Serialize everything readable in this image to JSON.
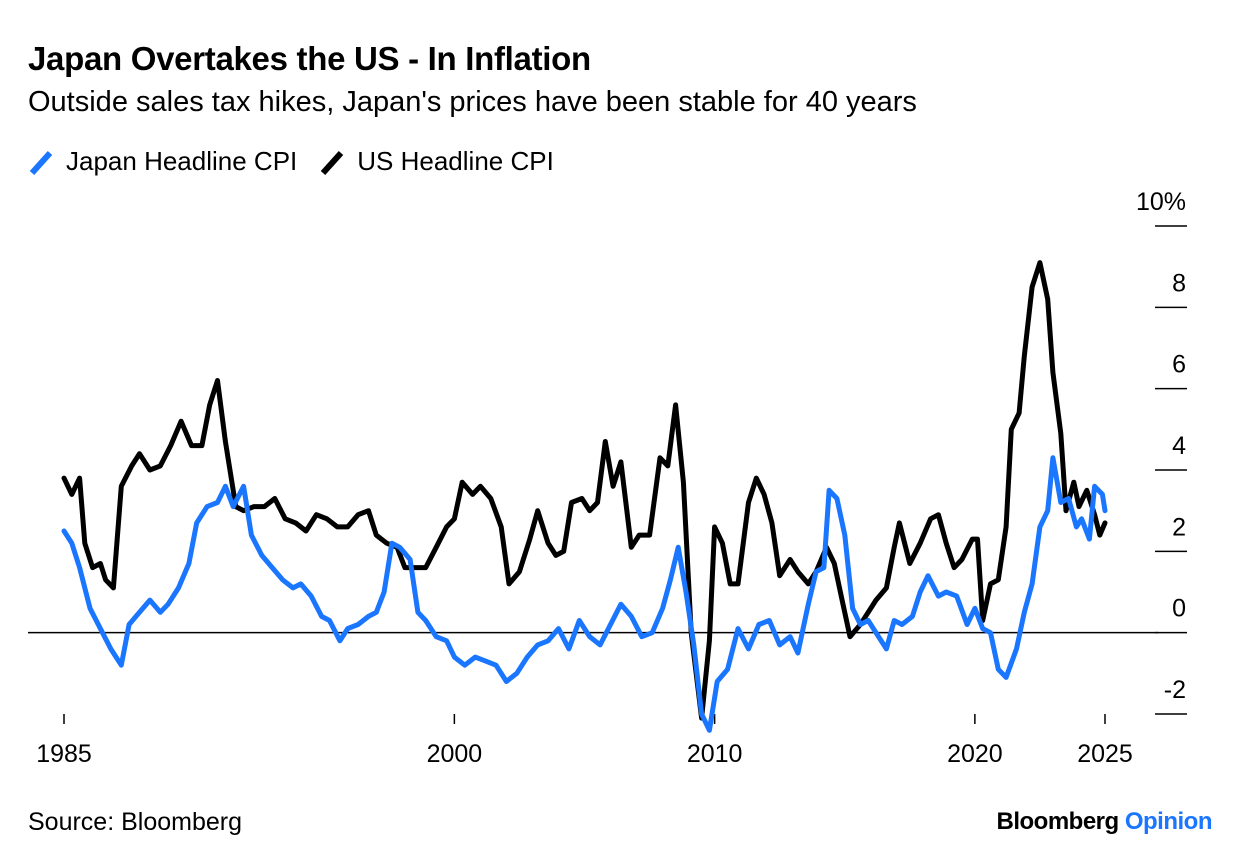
{
  "title": "Japan Overtakes the US - In Inflation",
  "subtitle": "Outside sales tax hikes, Japan's prices have been stable for 40 years",
  "legend": [
    {
      "label": "Japan Headline CPI",
      "color": "#1a76ff"
    },
    {
      "label": "US Headline CPI",
      "color": "#000000"
    }
  ],
  "source": "Source: Bloomberg",
  "brand": {
    "name": "Bloomberg",
    "product": "Opinion"
  },
  "chart_data": {
    "type": "line",
    "title": "Japan Overtakes the US - In Inflation",
    "subtitle": "Outside sales tax hikes, Japan's prices have been stable for 40 years",
    "xlabel": "",
    "ylabel": "",
    "xlim": [
      1985,
      2025
    ],
    "ylim": [
      -2,
      10
    ],
    "x_ticks": [
      {
        "value": 1985,
        "label": "1985"
      },
      {
        "value": 2000,
        "label": "2000"
      },
      {
        "value": 2010,
        "label": "2010"
      },
      {
        "value": 2020,
        "label": "2020"
      },
      {
        "value": 2025,
        "label": "2025"
      }
    ],
    "y_ticks": [
      {
        "value": 10,
        "label": "10%"
      },
      {
        "value": 8,
        "label": "8"
      },
      {
        "value": 6,
        "label": "6"
      },
      {
        "value": 4,
        "label": "4"
      },
      {
        "value": 2,
        "label": "2"
      },
      {
        "value": 0,
        "label": "0"
      },
      {
        "value": -2,
        "label": "-2"
      }
    ],
    "zero_line": true,
    "grid": false,
    "legend_position": "top-left",
    "series": [
      {
        "name": "Japan Headline CPI",
        "color": "#1a76ff",
        "points": [
          [
            1985.0,
            2.5
          ],
          [
            1985.3,
            2.2
          ],
          [
            1985.6,
            1.6
          ],
          [
            1986.0,
            0.6
          ],
          [
            1986.4,
            0.1
          ],
          [
            1986.8,
            -0.4
          ],
          [
            1987.0,
            -0.6
          ],
          [
            1987.2,
            -0.8
          ],
          [
            1987.5,
            0.2
          ],
          [
            1987.9,
            0.5
          ],
          [
            1988.3,
            0.8
          ],
          [
            1988.7,
            0.5
          ],
          [
            1989.0,
            0.7
          ],
          [
            1989.4,
            1.1
          ],
          [
            1989.8,
            1.7
          ],
          [
            1990.1,
            2.7
          ],
          [
            1990.5,
            3.1
          ],
          [
            1990.9,
            3.2
          ],
          [
            1991.2,
            3.6
          ],
          [
            1991.5,
            3.1
          ],
          [
            1991.9,
            3.6
          ],
          [
            1992.2,
            2.4
          ],
          [
            1992.6,
            1.9
          ],
          [
            1993.0,
            1.6
          ],
          [
            1993.4,
            1.3
          ],
          [
            1993.8,
            1.1
          ],
          [
            1994.1,
            1.2
          ],
          [
            1994.5,
            0.9
          ],
          [
            1994.9,
            0.4
          ],
          [
            1995.2,
            0.3
          ],
          [
            1995.6,
            -0.2
          ],
          [
            1995.9,
            0.1
          ],
          [
            1996.3,
            0.2
          ],
          [
            1996.7,
            0.4
          ],
          [
            1997.0,
            0.5
          ],
          [
            1997.3,
            1.0
          ],
          [
            1997.6,
            2.2
          ],
          [
            1997.9,
            2.1
          ],
          [
            1998.3,
            1.8
          ],
          [
            1998.6,
            0.5
          ],
          [
            1998.9,
            0.3
          ],
          [
            1999.3,
            -0.1
          ],
          [
            1999.7,
            -0.2
          ],
          [
            2000.0,
            -0.6
          ],
          [
            2000.4,
            -0.8
          ],
          [
            2000.8,
            -0.6
          ],
          [
            2001.2,
            -0.7
          ],
          [
            2001.6,
            -0.8
          ],
          [
            2002.0,
            -1.2
          ],
          [
            2002.4,
            -1.0
          ],
          [
            2002.8,
            -0.6
          ],
          [
            2003.2,
            -0.3
          ],
          [
            2003.6,
            -0.2
          ],
          [
            2004.0,
            0.1
          ],
          [
            2004.4,
            -0.4
          ],
          [
            2004.8,
            0.3
          ],
          [
            2005.2,
            -0.1
          ],
          [
            2005.6,
            -0.3
          ],
          [
            2006.0,
            0.2
          ],
          [
            2006.4,
            0.7
          ],
          [
            2006.8,
            0.4
          ],
          [
            2007.2,
            -0.1
          ],
          [
            2007.6,
            0.0
          ],
          [
            2008.0,
            0.6
          ],
          [
            2008.3,
            1.3
          ],
          [
            2008.6,
            2.1
          ],
          [
            2008.9,
            1.0
          ],
          [
            2009.2,
            -0.3
          ],
          [
            2009.5,
            -2.0
          ],
          [
            2009.8,
            -2.4
          ],
          [
            2010.1,
            -1.2
          ],
          [
            2010.5,
            -0.9
          ],
          [
            2010.9,
            0.1
          ],
          [
            2011.3,
            -0.4
          ],
          [
            2011.7,
            0.2
          ],
          [
            2012.1,
            0.3
          ],
          [
            2012.5,
            -0.3
          ],
          [
            2012.9,
            -0.1
          ],
          [
            2013.2,
            -0.5
          ],
          [
            2013.6,
            0.7
          ],
          [
            2013.9,
            1.5
          ],
          [
            2014.2,
            1.6
          ],
          [
            2014.4,
            3.5
          ],
          [
            2014.7,
            3.3
          ],
          [
            2015.0,
            2.4
          ],
          [
            2015.3,
            0.6
          ],
          [
            2015.6,
            0.2
          ],
          [
            2015.9,
            0.3
          ],
          [
            2016.2,
            0.0
          ],
          [
            2016.6,
            -0.4
          ],
          [
            2016.9,
            0.3
          ],
          [
            2017.2,
            0.2
          ],
          [
            2017.6,
            0.4
          ],
          [
            2017.9,
            1.0
          ],
          [
            2018.2,
            1.4
          ],
          [
            2018.6,
            0.9
          ],
          [
            2018.9,
            1.0
          ],
          [
            2019.3,
            0.9
          ],
          [
            2019.7,
            0.2
          ],
          [
            2020.0,
            0.6
          ],
          [
            2020.3,
            0.1
          ],
          [
            2020.6,
            0.0
          ],
          [
            2020.9,
            -0.9
          ],
          [
            2021.2,
            -1.1
          ],
          [
            2021.6,
            -0.4
          ],
          [
            2021.9,
            0.5
          ],
          [
            2022.2,
            1.2
          ],
          [
            2022.5,
            2.6
          ],
          [
            2022.8,
            3.0
          ],
          [
            2023.0,
            4.3
          ],
          [
            2023.3,
            3.2
          ],
          [
            2023.6,
            3.3
          ],
          [
            2023.9,
            2.6
          ],
          [
            2024.1,
            2.8
          ],
          [
            2024.4,
            2.3
          ],
          [
            2024.6,
            3.6
          ],
          [
            2024.9,
            3.4
          ],
          [
            2025.0,
            3.0
          ]
        ]
      },
      {
        "name": "US Headline CPI",
        "color": "#000000",
        "points": [
          [
            1985.0,
            3.8
          ],
          [
            1985.3,
            3.4
          ],
          [
            1985.6,
            3.8
          ],
          [
            1985.8,
            2.2
          ],
          [
            1986.1,
            1.6
          ],
          [
            1986.4,
            1.7
          ],
          [
            1986.6,
            1.3
          ],
          [
            1986.9,
            1.1
          ],
          [
            1987.2,
            3.6
          ],
          [
            1987.6,
            4.1
          ],
          [
            1987.9,
            4.4
          ],
          [
            1988.3,
            4.0
          ],
          [
            1988.7,
            4.1
          ],
          [
            1989.1,
            4.6
          ],
          [
            1989.5,
            5.2
          ],
          [
            1989.9,
            4.6
          ],
          [
            1990.3,
            4.6
          ],
          [
            1990.6,
            5.6
          ],
          [
            1990.9,
            6.2
          ],
          [
            1991.2,
            4.7
          ],
          [
            1991.6,
            3.1
          ],
          [
            1991.9,
            3.0
          ],
          [
            1992.3,
            3.1
          ],
          [
            1992.7,
            3.1
          ],
          [
            1993.1,
            3.3
          ],
          [
            1993.5,
            2.8
          ],
          [
            1993.9,
            2.7
          ],
          [
            1994.3,
            2.5
          ],
          [
            1994.7,
            2.9
          ],
          [
            1995.1,
            2.8
          ],
          [
            1995.5,
            2.6
          ],
          [
            1995.9,
            2.6
          ],
          [
            1996.3,
            2.9
          ],
          [
            1996.7,
            3.0
          ],
          [
            1997.0,
            2.4
          ],
          [
            1997.4,
            2.2
          ],
          [
            1997.8,
            2.1
          ],
          [
            1998.1,
            1.6
          ],
          [
            1998.5,
            1.6
          ],
          [
            1998.9,
            1.6
          ],
          [
            1999.3,
            2.1
          ],
          [
            1999.7,
            2.6
          ],
          [
            2000.0,
            2.8
          ],
          [
            2000.3,
            3.7
          ],
          [
            2000.7,
            3.4
          ],
          [
            2001.0,
            3.6
          ],
          [
            2001.4,
            3.3
          ],
          [
            2001.8,
            2.6
          ],
          [
            2002.1,
            1.2
          ],
          [
            2002.5,
            1.5
          ],
          [
            2002.9,
            2.3
          ],
          [
            2003.2,
            3.0
          ],
          [
            2003.6,
            2.2
          ],
          [
            2003.9,
            1.9
          ],
          [
            2004.2,
            2.0
          ],
          [
            2004.5,
            3.2
          ],
          [
            2004.9,
            3.3
          ],
          [
            2005.2,
            3.0
          ],
          [
            2005.5,
            3.2
          ],
          [
            2005.8,
            4.7
          ],
          [
            2006.1,
            3.6
          ],
          [
            2006.4,
            4.2
          ],
          [
            2006.8,
            2.1
          ],
          [
            2007.1,
            2.4
          ],
          [
            2007.5,
            2.4
          ],
          [
            2007.9,
            4.3
          ],
          [
            2008.2,
            4.1
          ],
          [
            2008.5,
            5.6
          ],
          [
            2008.8,
            3.7
          ],
          [
            2009.1,
            0.0
          ],
          [
            2009.5,
            -2.1
          ],
          [
            2009.8,
            -0.2
          ],
          [
            2010.0,
            2.6
          ],
          [
            2010.3,
            2.2
          ],
          [
            2010.6,
            1.2
          ],
          [
            2010.9,
            1.2
          ],
          [
            2011.3,
            3.2
          ],
          [
            2011.6,
            3.8
          ],
          [
            2011.9,
            3.4
          ],
          [
            2012.2,
            2.7
          ],
          [
            2012.5,
            1.4
          ],
          [
            2012.9,
            1.8
          ],
          [
            2013.2,
            1.5
          ],
          [
            2013.6,
            1.2
          ],
          [
            2013.9,
            1.5
          ],
          [
            2014.3,
            2.1
          ],
          [
            2014.6,
            1.7
          ],
          [
            2014.9,
            0.8
          ],
          [
            2015.2,
            -0.1
          ],
          [
            2015.6,
            0.2
          ],
          [
            2015.9,
            0.5
          ],
          [
            2016.2,
            0.8
          ],
          [
            2016.6,
            1.1
          ],
          [
            2016.9,
            2.1
          ],
          [
            2017.1,
            2.7
          ],
          [
            2017.5,
            1.7
          ],
          [
            2017.9,
            2.2
          ],
          [
            2018.3,
            2.8
          ],
          [
            2018.6,
            2.9
          ],
          [
            2018.9,
            2.2
          ],
          [
            2019.2,
            1.6
          ],
          [
            2019.5,
            1.8
          ],
          [
            2019.9,
            2.3
          ],
          [
            2020.1,
            2.3
          ],
          [
            2020.3,
            0.3
          ],
          [
            2020.6,
            1.2
          ],
          [
            2020.9,
            1.3
          ],
          [
            2021.2,
            2.6
          ],
          [
            2021.4,
            5.0
          ],
          [
            2021.7,
            5.4
          ],
          [
            2021.9,
            6.8
          ],
          [
            2022.2,
            8.5
          ],
          [
            2022.5,
            9.1
          ],
          [
            2022.8,
            8.2
          ],
          [
            2023.0,
            6.4
          ],
          [
            2023.3,
            4.9
          ],
          [
            2023.5,
            3.0
          ],
          [
            2023.8,
            3.7
          ],
          [
            2024.0,
            3.1
          ],
          [
            2024.3,
            3.5
          ],
          [
            2024.6,
            2.9
          ],
          [
            2024.8,
            2.4
          ],
          [
            2025.0,
            2.7
          ]
        ]
      }
    ]
  }
}
